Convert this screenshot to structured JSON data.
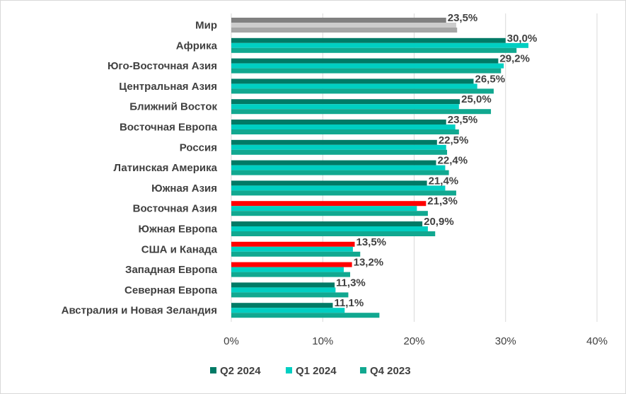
{
  "chart_data": {
    "type": "bar",
    "orientation": "horizontal",
    "title": "",
    "xlabel": "",
    "ylabel": "",
    "xlim": [
      0,
      40
    ],
    "ticks": [
      0,
      10,
      20,
      30,
      40
    ],
    "tick_suffix": "%",
    "grid": true,
    "legend_position": "bottom",
    "categories": [
      "Мир",
      "Африка",
      "Юго-Восточная Азия",
      "Центральная Азия",
      "Ближний Восток",
      "Восточная Европа",
      "Россия",
      "Латинская Америка",
      "Южная Азия",
      "Восточная Азия",
      "Южная Европа",
      "США и Канада",
      "Западная Европа",
      "Северная Европа",
      "Австралия и Новая Зеландия"
    ],
    "series": [
      {
        "name": "Q2 2024",
        "color": "#007a66",
        "values": [
          23.5,
          30.0,
          29.2,
          26.5,
          25.0,
          23.5,
          22.5,
          22.4,
          21.4,
          21.3,
          20.9,
          13.5,
          13.2,
          11.3,
          11.1
        ]
      },
      {
        "name": "Q1 2024",
        "color": "#00cfc2",
        "values": [
          24.6,
          32.5,
          29.8,
          26.9,
          24.9,
          24.5,
          23.5,
          23.4,
          23.4,
          20.3,
          21.5,
          13.3,
          12.3,
          11.4,
          12.4
        ]
      },
      {
        "name": "Q4 2023",
        "color": "#11a890",
        "values": [
          24.7,
          31.2,
          29.5,
          28.7,
          28.4,
          24.9,
          23.6,
          23.8,
          24.6,
          21.5,
          22.3,
          14.1,
          13.0,
          12.8,
          16.2
        ]
      }
    ],
    "data_labels": [
      "23,5%",
      "30,0%",
      "29,2%",
      "26,5%",
      "25,0%",
      "23,5%",
      "22,5%",
      "22,4%",
      "21,4%",
      "21,3%",
      "20,9%",
      "13,5%",
      "13,2%",
      "11,3%",
      "11,1%"
    ],
    "highlight_color": "#ff0000",
    "highlight_categories": [
      "Восточная Азия",
      "США и Канада",
      "Западная Европа"
    ],
    "world_colors": [
      "#808080",
      "#cccccc",
      "#a6a6a6"
    ],
    "world_category": "Мир"
  }
}
